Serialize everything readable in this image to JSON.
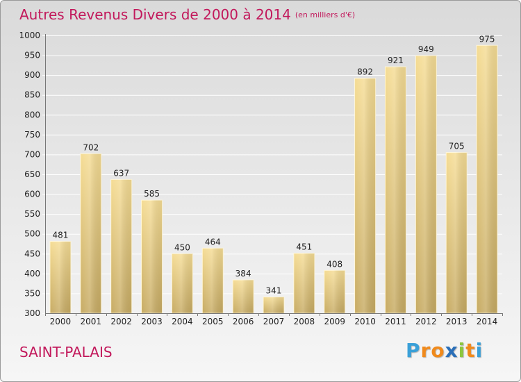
{
  "header": {
    "title": "Autres Revenus Divers de 2000 à 2014",
    "unit": "(en milliers d'€)"
  },
  "footer": {
    "place": "SAINT-PALAIS"
  },
  "logo": {
    "letters": [
      "P",
      "r",
      "o",
      "x",
      "i",
      "t",
      "i"
    ],
    "colors": [
      "#3aa0d8",
      "#f08a1c",
      "#f08a1c",
      "#2a6fb8",
      "#8cc63f",
      "#f08a1c",
      "#3aa0d8"
    ]
  },
  "colors": {
    "bar_light": "#f5dc94",
    "bar_dark": "#c7ab63",
    "accent": "#c2185b"
  },
  "chart_data": {
    "type": "bar",
    "title": "Autres Revenus Divers de 2000 à 2014",
    "subtitle": "(en milliers d'€)",
    "categories": [
      "2000",
      "2001",
      "2002",
      "2003",
      "2004",
      "2005",
      "2006",
      "2007",
      "2008",
      "2009",
      "2010",
      "2011",
      "2012",
      "2013",
      "2014"
    ],
    "values": [
      481,
      702,
      637,
      585,
      450,
      464,
      384,
      341,
      451,
      408,
      892,
      921,
      949,
      705,
      975
    ],
    "ylim": [
      300,
      1000
    ],
    "yticks": [
      300,
      350,
      400,
      450,
      500,
      550,
      600,
      650,
      700,
      750,
      800,
      850,
      900,
      950,
      1000
    ],
    "grid": true,
    "data_labels": true
  }
}
